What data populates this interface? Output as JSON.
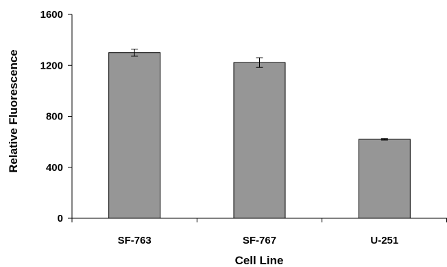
{
  "chart_data": {
    "type": "bar",
    "title": "",
    "xlabel": "Cell Line",
    "ylabel": "Relative Fluorescence",
    "categories": [
      "SF-763",
      "SF-767",
      "U-251"
    ],
    "values": [
      1300,
      1222,
      620
    ],
    "errors": [
      28,
      38,
      6
    ],
    "ylim": [
      0,
      1600
    ],
    "yticks": [
      0,
      400,
      800,
      1200,
      1600
    ],
    "ytick_labels": [
      "0",
      "400",
      "800",
      "1200",
      "1600"
    ],
    "grid": false,
    "legend": "none",
    "colors": {
      "bar": "#969696",
      "bar_stroke": "#000000",
      "axis": "#000000"
    }
  }
}
